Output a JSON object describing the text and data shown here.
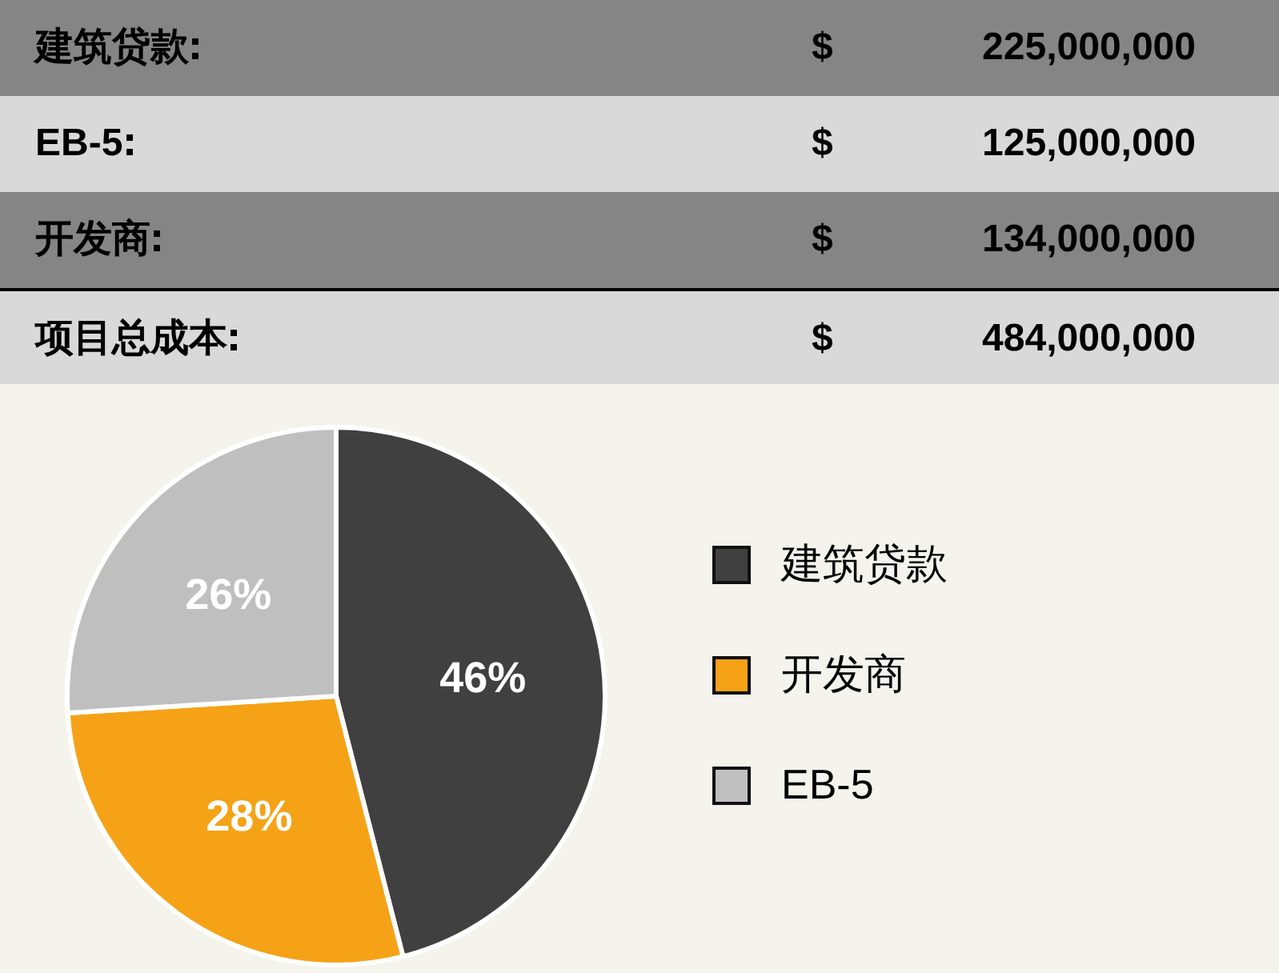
{
  "chart_data": [
    {
      "type": "other",
      "categories": [
        "建筑贷款",
        "EB-5",
        "开发商",
        "项目总成本"
      ],
      "values": [
        225000000,
        125000000,
        134000000,
        484000000
      ],
      "value_labels": [
        "225,000,000",
        "125,000,000",
        "134,000,000",
        "484,000,000"
      ],
      "annotations": [
        "$",
        "$",
        "$",
        "$"
      ]
    },
    {
      "type": "pie",
      "categories": [
        "建筑贷款",
        "开发商",
        "EB-5"
      ],
      "values": [
        46,
        28,
        26
      ],
      "colors": [
        "#404040",
        "#f5a217",
        "#bfbfbf"
      ],
      "value_labels": [
        "46%",
        "28%",
        "26%"
      ],
      "legend": "right"
    }
  ]
}
